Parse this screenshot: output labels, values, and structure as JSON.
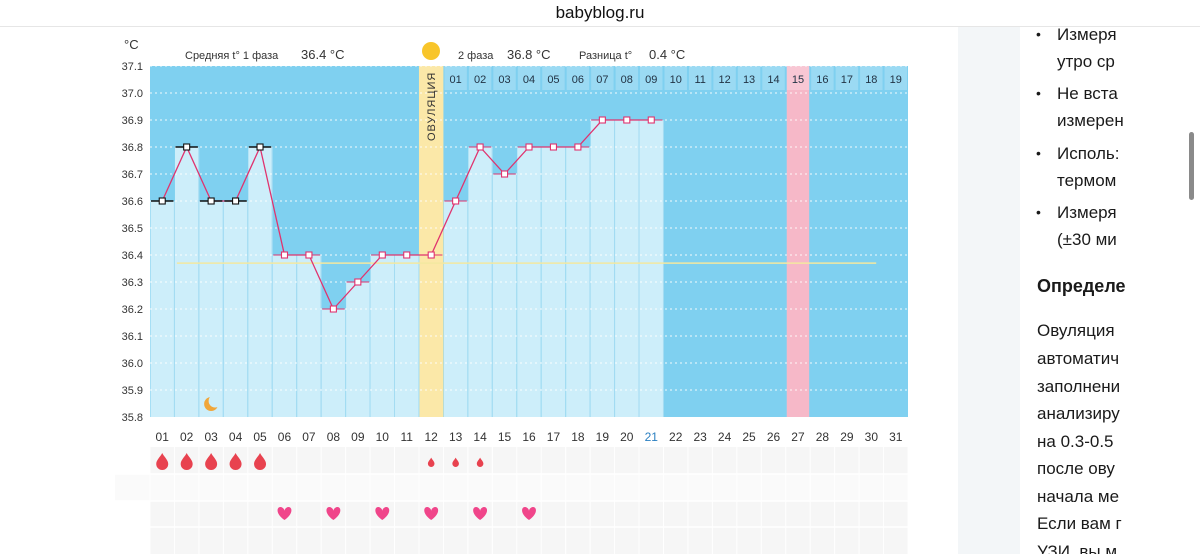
{
  "browser": {
    "url": "babyblog.ru"
  },
  "chart_data": {
    "type": "line",
    "unit_label": "°C",
    "header": {
      "phase1_label": "Средняя t° 1 фаза",
      "phase1_value": "36.4 °C",
      "phase2_label": "2 фаза",
      "phase2_value": "36.8 °C",
      "diff_label": "Разница t°",
      "diff_value": "0.4 °C"
    },
    "y_ticks": [
      "37.1",
      "37.0",
      "36.9",
      "36.8",
      "36.7",
      "36.6",
      "36.5",
      "36.4",
      "36.3",
      "36.2",
      "36.1",
      "36.0",
      "35.9",
      "35.8"
    ],
    "ylim": [
      35.8,
      37.1
    ],
    "x_labels": [
      "01",
      "02",
      "03",
      "04",
      "05",
      "06",
      "07",
      "08",
      "09",
      "10",
      "11",
      "12",
      "13",
      "14",
      "15",
      "16",
      "17",
      "18",
      "19",
      "20",
      "21",
      "22",
      "23",
      "24",
      "25",
      "26",
      "27",
      "28",
      "29",
      "30",
      "31"
    ],
    "highlight_day": "21",
    "cycle_labels": [
      "01",
      "02",
      "03",
      "04",
      "05",
      "06",
      "07",
      "08",
      "09",
      "10",
      "11",
      "12",
      "13",
      "14",
      "15",
      "16",
      "17",
      "18",
      "19"
    ],
    "ovulation_label": "ОВУЛЯЦИЯ",
    "ovulation_day": 12,
    "pink_day": 27,
    "temperatures": [
      36.6,
      36.8,
      36.6,
      36.6,
      36.8,
      36.4,
      36.4,
      36.2,
      36.3,
      36.4,
      36.4,
      36.4,
      36.6,
      36.8,
      36.7,
      36.8,
      36.8,
      36.8,
      36.9,
      36.9,
      36.9
    ],
    "phase1_markers_days": 5,
    "average_line_value": 36.37,
    "moon_day": 3,
    "period_days": [
      1,
      2,
      3,
      4,
      5
    ],
    "spotting_days": [
      12,
      13,
      14
    ],
    "heart_days": [
      6,
      8,
      10,
      12,
      14,
      16
    ],
    "colors": {
      "chart_bg": "#7fd0f0",
      "bar_fill": "#cdeefa",
      "line": "#e0336e",
      "ovulation": "#fbe8a8",
      "pink": "#f6b8c8",
      "avg_line": "#f3e8a0",
      "drop": "#e8424f",
      "heart": "#f0458a"
    }
  },
  "article": {
    "bullets": [
      {
        "line1": "Измеря",
        "line2": "утро ср"
      },
      {
        "line1": "Не вста",
        "line2": "измерен"
      },
      {
        "line1": "Исполь:",
        "line2": "термом"
      },
      {
        "line1": "Измеря",
        "line2": "(±30 ми"
      }
    ],
    "heading": "Определе",
    "paragraph": [
      "Овуляция",
      "автоматич",
      "заполнени",
      "анализиру",
      "на 0.3-0.5",
      "после ову",
      "начала ме",
      "Если вам г",
      "УЗИ, вы м"
    ]
  }
}
